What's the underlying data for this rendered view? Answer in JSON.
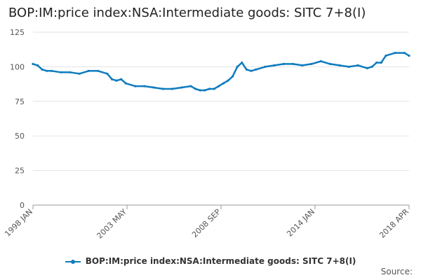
{
  "chart_data": {
    "type": "line",
    "title": "BOP:IM:price index:NSA:Intermediate goods: SITC 7+8(I)",
    "xlabel": "",
    "ylabel": "",
    "ylim": [
      0,
      125
    ],
    "yticks": [
      0,
      25,
      50,
      75,
      100,
      125
    ],
    "xticks": [
      "1998 JAN",
      "2003 MAY",
      "2008 SEP",
      "2014 JAN",
      "2018 APR"
    ],
    "grid": true,
    "legend_position": "bottom",
    "series": [
      {
        "name": "BOP:IM:price index:NSA:Intermediate goods: SITC 7+8(I)",
        "color": "#0f7cbf",
        "x": [
          1998.0,
          1998.25,
          1998.5,
          1998.75,
          1999.0,
          1999.5,
          2000.0,
          2000.5,
          2001.0,
          2001.5,
          2002.0,
          2002.25,
          2002.5,
          2002.75,
          2003.0,
          2003.5,
          2004.0,
          2004.5,
          2005.0,
          2005.5,
          2006.0,
          2006.5,
          2006.75,
          2007.0,
          2007.25,
          2007.5,
          2007.75,
          2008.0,
          2008.25,
          2008.5,
          2008.75,
          2009.0,
          2009.25,
          2009.5,
          2009.75,
          2010.0,
          2010.5,
          2011.0,
          2011.5,
          2012.0,
          2012.5,
          2013.0,
          2013.5,
          2014.0,
          2014.5,
          2015.0,
          2015.5,
          2016.0,
          2016.25,
          2016.5,
          2016.75,
          2017.0,
          2017.5,
          2018.0,
          2018.25
        ],
        "values": [
          102,
          101,
          98,
          97,
          97,
          96,
          96,
          95,
          97,
          97,
          95,
          91,
          90,
          91,
          88,
          86,
          86,
          85,
          84,
          84,
          85,
          86,
          84,
          83,
          83,
          84,
          84,
          86,
          88,
          90,
          93,
          100,
          103,
          98,
          97,
          98,
          100,
          101,
          102,
          102,
          101,
          102,
          104,
          102,
          101,
          100,
          101,
          99,
          100,
          103,
          103,
          108,
          110,
          110,
          108
        ]
      }
    ]
  },
  "legend": {
    "label": "BOP:IM:price index:NSA:Intermediate goods: SITC 7+8(I)"
  },
  "footer": {
    "source_label": "Source:"
  }
}
